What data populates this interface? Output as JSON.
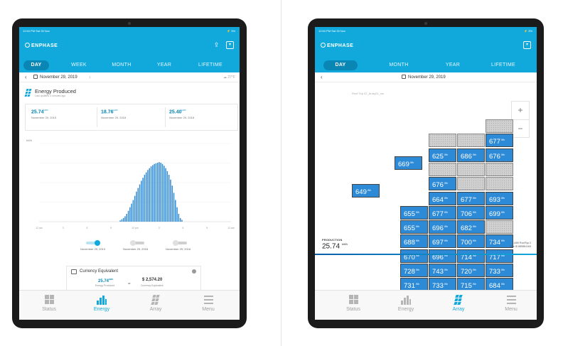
{
  "left": {
    "status_bar": {
      "time": "12:54 PM   Sat 30 Nov",
      "right": "⚡ 3%"
    },
    "brand": "ENPHASE",
    "tabs": [
      "DAY",
      "WEEK",
      "MONTH",
      "YEAR",
      "LIFETIME"
    ],
    "active_tab": "DAY",
    "date": "November 29, 2019",
    "weather": "27°F",
    "energy_title": "Energy Produced",
    "energy_subtitle": "Last updated 4 minutes ago",
    "stats": [
      {
        "value": "25.74",
        "unit": "kWh",
        "date": "November 29, 2019"
      },
      {
        "value": "18.76",
        "unit": "kWh",
        "date": "November 29, 2018"
      },
      {
        "value": "25.40",
        "unit": "kWh",
        "date": "November 29, 2018"
      }
    ],
    "legend_dates": [
      "November 29, 2019",
      "November 29, 2018",
      "November 29, 2018"
    ],
    "currency": {
      "title": "Currency Equivalent",
      "energy_value": "25.74",
      "energy_unit": "kWh",
      "energy_label": "Energy Produced",
      "money_value": "$ 2,574.20",
      "money_label": "Currency Equivalent",
      "equals": "="
    },
    "nav": [
      {
        "label": "Status",
        "icon": "grid-icon"
      },
      {
        "label": "Energy",
        "icon": "bar-chart-icon"
      },
      {
        "label": "Array",
        "icon": "array-icon"
      },
      {
        "label": "Menu",
        "icon": "menu-icon"
      }
    ],
    "active_nav": "Energy",
    "chart_data": {
      "type": "bar",
      "title": "",
      "ylabel": "kWh",
      "ytick_labels": [
        "",
        "",
        "",
        ""
      ],
      "xtick_labels": [
        "12 am",
        "3",
        "6",
        "9",
        "12 pm",
        "3",
        "6",
        "9",
        "12 am"
      ],
      "series": [
        {
          "values": [
            0.02,
            0.04,
            0.06,
            0.09,
            0.13,
            0.18,
            0.24,
            0.3,
            0.36,
            0.43,
            0.5,
            0.56,
            0.62,
            0.68,
            0.73,
            0.78,
            0.82,
            0.86,
            0.89,
            0.92,
            0.94,
            0.96,
            0.97,
            0.98,
            0.99,
            0.98,
            0.96,
            0.93,
            0.89,
            0.84,
            0.78,
            0.7,
            0.6,
            0.48,
            0.36,
            0.24,
            0.13,
            0.06,
            0.03
          ]
        }
      ],
      "grid": true,
      "color": "#2d8ad6",
      "ylim": [
        0,
        1.3
      ]
    }
  },
  "right": {
    "status_bar": {
      "time": "12:54 PM   Sat 30 Nov",
      "right": "⚡ 3%"
    },
    "brand": "ENPHASE",
    "tabs": [
      "DAY",
      "MONTH",
      "YEAR",
      "LIFETIME"
    ],
    "active_tab": "DAY",
    "date": "November 29, 2019",
    "array_name": "Roof Top 02_Array01_sw",
    "zoom_in": "+",
    "zoom_out": "−",
    "panel_unit": "Wh",
    "panels": [
      {
        "col": 3,
        "row": 0,
        "value": ""
      },
      {
        "col": 1,
        "row": 1,
        "value": ""
      },
      {
        "col": 2,
        "row": 1,
        "value": ""
      },
      {
        "col": 3,
        "row": 1,
        "value": "677"
      },
      {
        "col": 1,
        "row": 2,
        "value": "625"
      },
      {
        "col": 2,
        "row": 2,
        "value": "686"
      },
      {
        "col": 3,
        "row": 2,
        "value": "676"
      },
      {
        "col": 1,
        "row": 3,
        "value": ""
      },
      {
        "col": 2,
        "row": 3,
        "value": ""
      },
      {
        "col": 3,
        "row": 3,
        "value": ""
      },
      {
        "col": 1,
        "row": 4,
        "value": "676"
      },
      {
        "col": 2,
        "row": 4,
        "value": ""
      },
      {
        "col": 3,
        "row": 4,
        "value": ""
      },
      {
        "col": 1,
        "row": 5,
        "value": "664"
      },
      {
        "col": 2,
        "row": 5,
        "value": "677"
      },
      {
        "col": 3,
        "row": 5,
        "value": "693"
      },
      {
        "col": 0,
        "row": 6,
        "value": "655"
      },
      {
        "col": 1,
        "row": 6,
        "value": "677"
      },
      {
        "col": 2,
        "row": 6,
        "value": "706"
      },
      {
        "col": 3,
        "row": 6,
        "value": "699"
      },
      {
        "col": 0,
        "row": 7,
        "value": "655"
      },
      {
        "col": 1,
        "row": 7,
        "value": "696"
      },
      {
        "col": 2,
        "row": 7,
        "value": "682"
      },
      {
        "col": 3,
        "row": 7,
        "value": ""
      },
      {
        "col": 0,
        "row": 8,
        "value": "688"
      },
      {
        "col": 1,
        "row": 8,
        "value": "697"
      },
      {
        "col": 2,
        "row": 8,
        "value": "700"
      },
      {
        "col": 3,
        "row": 8,
        "value": "734"
      },
      {
        "col": 0,
        "row": 9,
        "value": "670"
      },
      {
        "col": 1,
        "row": 9,
        "value": "696"
      },
      {
        "col": 2,
        "row": 9,
        "value": "714"
      },
      {
        "col": 3,
        "row": 9,
        "value": "717"
      },
      {
        "col": 0,
        "row": 10,
        "value": "728"
      },
      {
        "col": 1,
        "row": 10,
        "value": "743"
      },
      {
        "col": 2,
        "row": 10,
        "value": "720"
      },
      {
        "col": 3,
        "row": 10,
        "value": "733"
      },
      {
        "col": 0,
        "row": 11,
        "value": "731"
      },
      {
        "col": 1,
        "row": 11,
        "value": "733"
      },
      {
        "col": 2,
        "row": 11,
        "value": "715"
      },
      {
        "col": 3,
        "row": 11,
        "value": "684"
      }
    ],
    "loose_panels": [
      {
        "value": "669",
        "slot": "upper"
      },
      {
        "value": "649",
        "slot": "lower"
      }
    ],
    "production_label": "PRODUCTION",
    "production_value": "25.74",
    "production_unit": "kWh",
    "system_line1": "1450 RoofTop 2",
    "system_line2": "Site ID  8898N1163",
    "nav": [
      {
        "label": "Status",
        "icon": "grid-icon"
      },
      {
        "label": "Energy",
        "icon": "bar-chart-icon"
      },
      {
        "label": "Array",
        "icon": "array-icon"
      },
      {
        "label": "Menu",
        "icon": "menu-icon"
      }
    ],
    "active_nav": "Array",
    "colors": {
      "accent": "#11a9dc",
      "panel": "#2d8ad6",
      "panel_empty": "#cfcfcf"
    }
  }
}
